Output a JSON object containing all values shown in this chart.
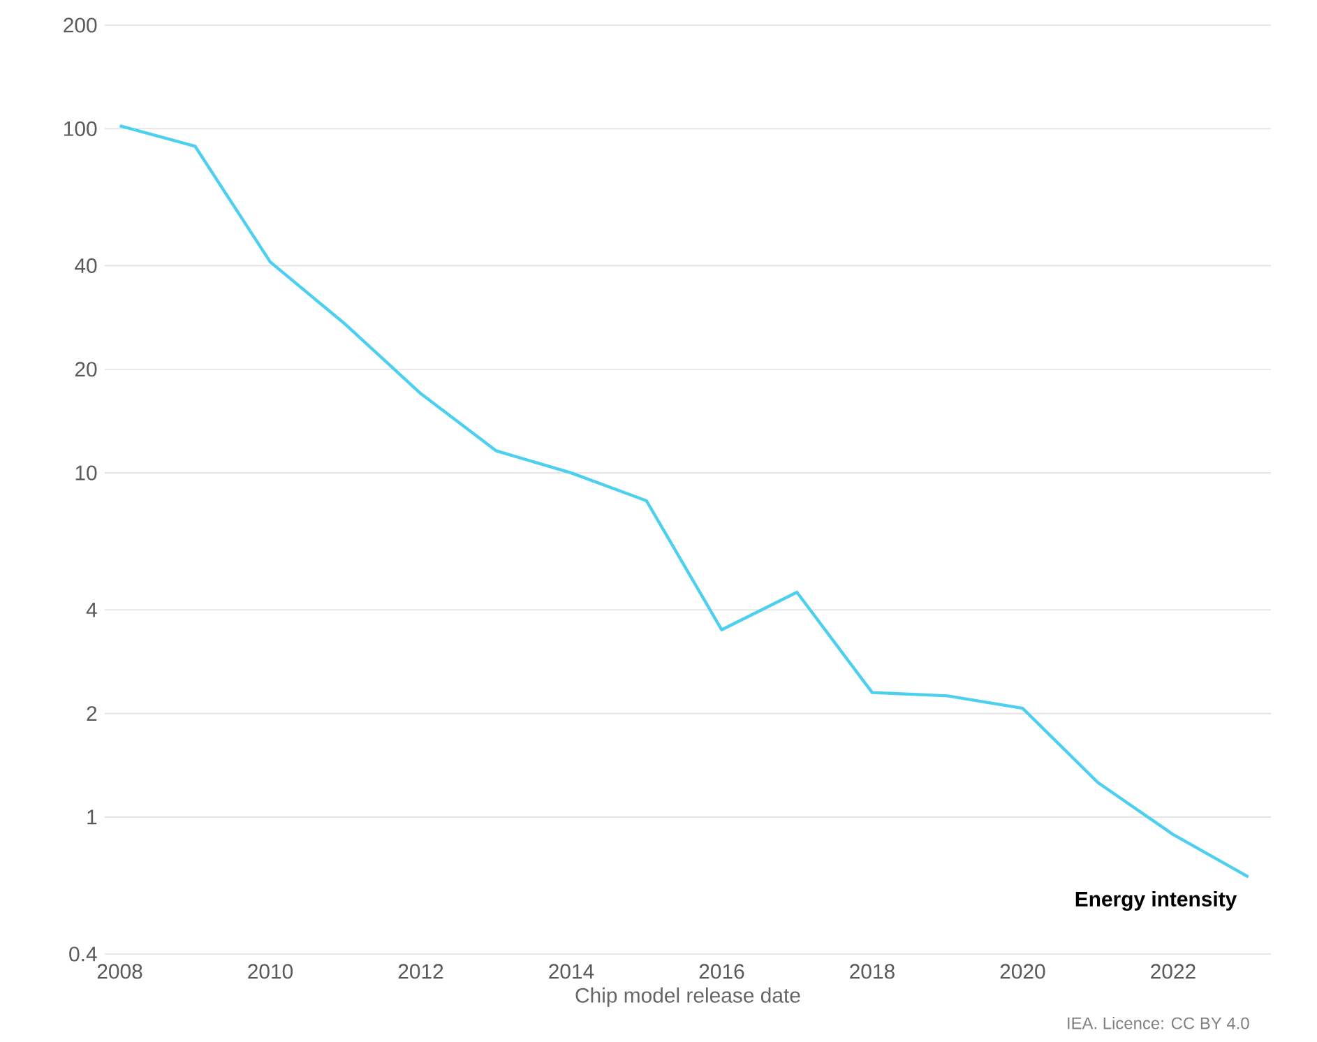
{
  "chart_data": {
    "type": "line",
    "xlabel": "Chip model release date",
    "log": "y",
    "grid": "y",
    "legend": false,
    "x": [
      2008,
      2009,
      2010,
      2011,
      2012,
      2013,
      2014,
      2015,
      2016,
      2017,
      2018,
      2019,
      2020,
      2021,
      2022,
      2023
    ],
    "series": [
      {
        "name": "Energy intensity",
        "color": "#4dd0f0",
        "values": [
          102,
          89,
          41,
          27,
          17,
          11.6,
          10,
          8.3,
          3.5,
          4.5,
          2.3,
          2.25,
          2.07,
          1.26,
          0.89,
          0.67
        ]
      }
    ],
    "xlim": [
      2007.8,
      2023.3
    ],
    "xticks": [
      2008,
      2010,
      2012,
      2014,
      2016,
      2018,
      2020,
      2022
    ],
    "ylim": [
      0.4,
      200
    ],
    "yticks": [
      0.4,
      1,
      2,
      4,
      10,
      20,
      40,
      100,
      200
    ],
    "annotations": [
      "IEA. Licence: CC BY 4.0"
    ]
  }
}
